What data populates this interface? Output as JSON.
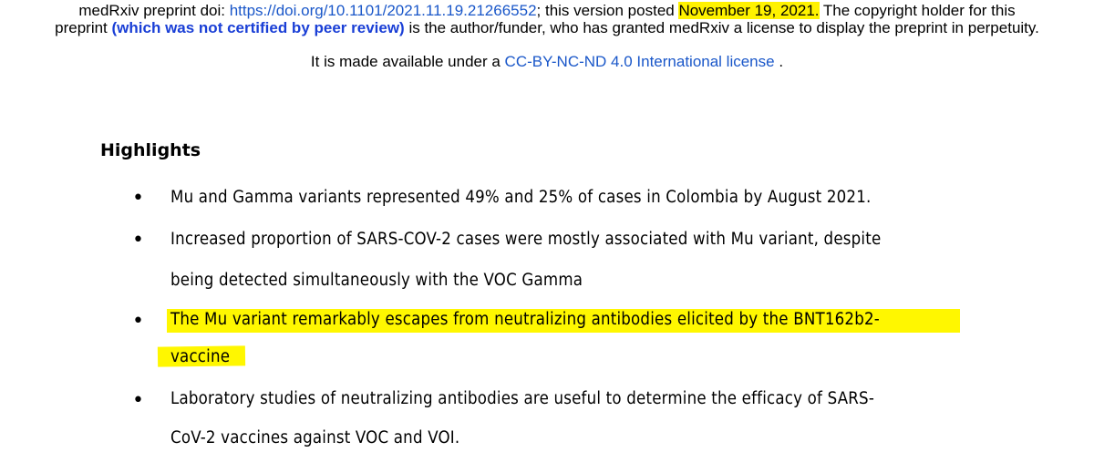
{
  "header": {
    "line1_prefix": "medRxiv preprint doi: ",
    "doi_link": "https://doi.org/10.1101/2021.11.19.21266552",
    "line1_mid": "; this version posted ",
    "posted_date": "November 19, 2021.",
    "line1_suffix": " The copyright holder for this",
    "line2_prefix": "preprint ",
    "peer_review_note": "(which was not certified by peer review)",
    "line2_suffix": " is the author/funder, who has granted medRxiv a license to display the preprint in perpetuity.",
    "line3_prefix": "It is made available under a ",
    "license_link": "CC-BY-NC-ND 4.0 International license",
    "line3_suffix": " ."
  },
  "highlights": {
    "title": "Highlights",
    "items": [
      {
        "lines": [
          "Mu and Gamma variants represented 49% and 25% of cases in Colombia by August 2021."
        ]
      },
      {
        "lines": [
          "Increased proportion of SARS-COV-2 cases were mostly associated with Mu variant, despite",
          "being detected simultaneously with the VOC Gamma"
        ]
      },
      {
        "lines": [
          "The Mu variant remarkably escapes from neutralizing antibodies elicited by the BNT162b2-",
          "vaccine"
        ]
      },
      {
        "lines": [
          "Laboratory studies of neutralizing antibodies are useful to determine the efficacy of SARS-",
          "CoV-2 vaccines against VOC and VOI."
        ]
      }
    ]
  },
  "colors": {
    "link": "#1a57c9",
    "highlight": "#fff200"
  }
}
